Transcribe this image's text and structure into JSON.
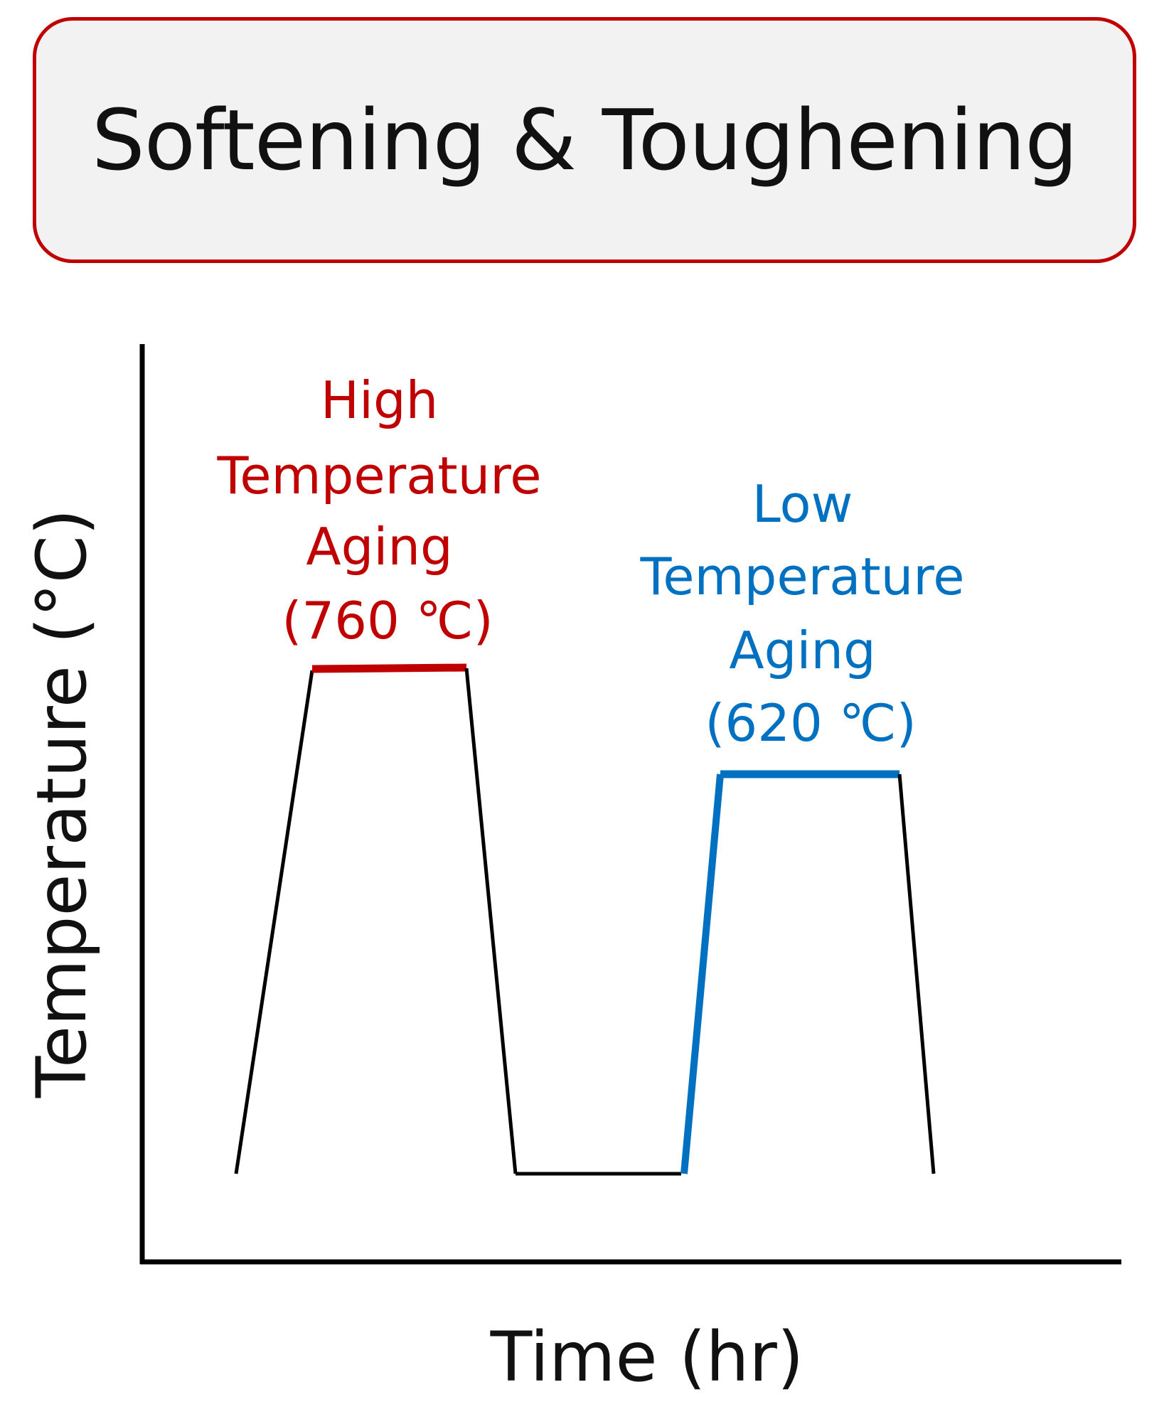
{
  "title": "Softening & Toughening",
  "axes": {
    "x_label": "Time (hr)",
    "y_label": "Temperature (°C)"
  },
  "annotations": {
    "high": {
      "lines": [
        "High",
        "Temperature",
        "Aging",
        "(760 ℃)"
      ],
      "temperature_c": 760
    },
    "low": {
      "lines": [
        "Low",
        "Temperature",
        "Aging",
        "(620 ℃)"
      ],
      "temperature_c": 620
    }
  },
  "colors": {
    "title_border": "#c00000",
    "title_fill": "#f2f2f2",
    "high_stage": "#c00000",
    "low_stage": "#0070c0",
    "axis": "#000000",
    "profile": "#000000"
  }
}
